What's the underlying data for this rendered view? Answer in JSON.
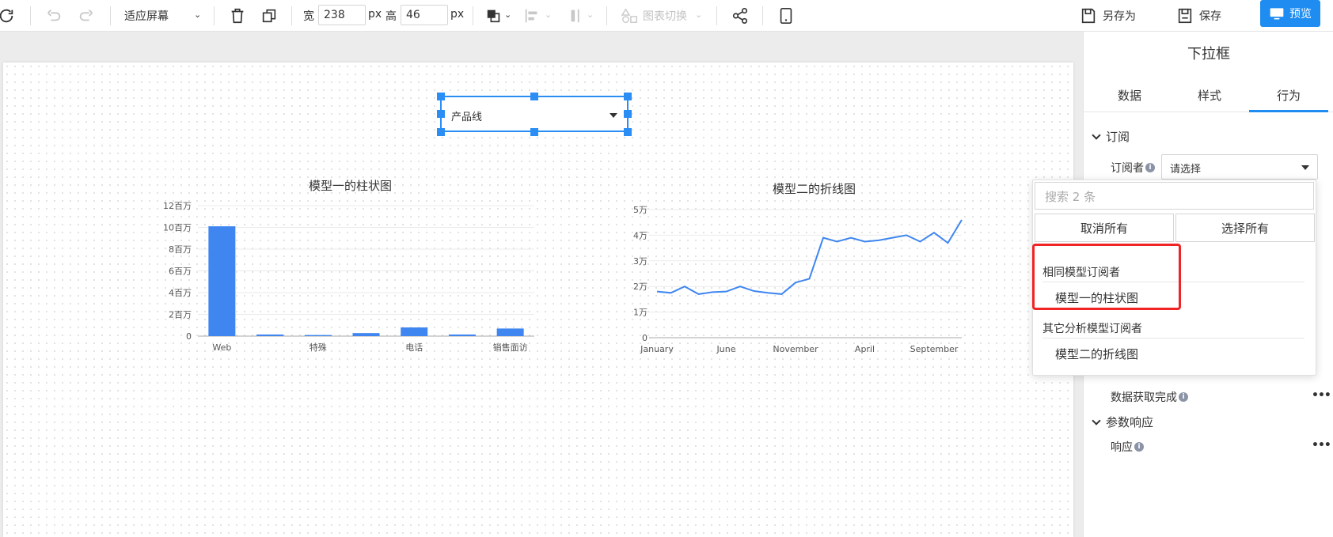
{
  "toolbar": {
    "fit_label": "适应屏幕",
    "width_label": "宽",
    "width_value": "238",
    "px1": "px",
    "height_label": "高",
    "height_value": "46",
    "px2": "px",
    "chart_switch": "图表切换",
    "save_as": "另存为",
    "save": "保存",
    "preview": "预览"
  },
  "widget": {
    "value": "产品线"
  },
  "panel": {
    "title": "下拉框",
    "tabs": [
      "数据",
      "样式",
      "行为"
    ],
    "active_tab": "行为",
    "subscribe_section": "订阅",
    "subscriber_label": "订阅者",
    "subscriber_placeholder": "请选择",
    "data_complete_label": "数据获取完成",
    "param_section": "参数响应",
    "response_label": "响应",
    "more": "•••"
  },
  "popup": {
    "search_placeholder": "搜索 2 条",
    "cancel_all": "取消所有",
    "select_all": "选择所有",
    "group1": "相同模型订阅者",
    "group1_items": [
      "模型一的柱状图"
    ],
    "group2": "其它分析模型订阅者",
    "group2_items": [
      "模型二的折线图"
    ]
  },
  "chart_data": [
    {
      "type": "bar",
      "title": "模型一的柱状图",
      "categories": [
        "Web",
        "",
        "特殊",
        "",
        "电话",
        "",
        "销售面访"
      ],
      "values": [
        10100000,
        150000,
        100000,
        280000,
        800000,
        150000,
        700000
      ],
      "yticks": [
        "0",
        "2百万",
        "4百万",
        "6百万",
        "8百万",
        "10百万",
        "12百万"
      ],
      "ylim": [
        0,
        12000000
      ],
      "color": "#3f86f0",
      "grid": true
    },
    {
      "type": "line",
      "title": "模型二的折线图",
      "xticks": [
        "January",
        "June",
        "November",
        "April",
        "September"
      ],
      "xtick_index": [
        0,
        5,
        10,
        15,
        20
      ],
      "values": [
        18000,
        17500,
        20000,
        17000,
        17800,
        18000,
        20000,
        18200,
        17500,
        17000,
        21500,
        23000,
        39000,
        37500,
        39000,
        37500,
        38000,
        39000,
        40000,
        37500,
        41000,
        37000,
        46000
      ],
      "yticks": [
        "0",
        "1万",
        "2万",
        "3万",
        "4万",
        "5万"
      ],
      "ylim": [
        0,
        50000
      ],
      "color": "#3f86f0",
      "grid": true
    }
  ]
}
